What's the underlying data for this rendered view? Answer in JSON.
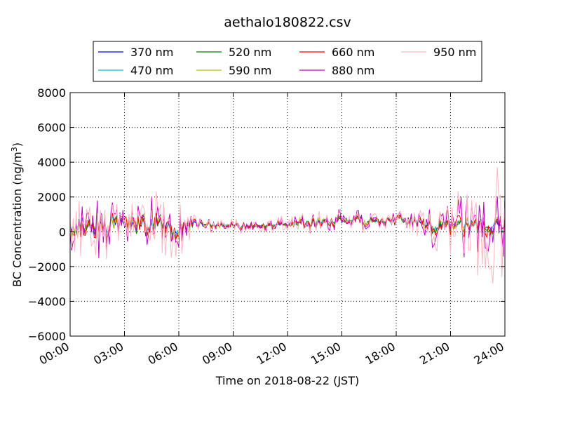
{
  "chart_data": {
    "type": "line",
    "title": "aethalo180822.csv",
    "xlabel": "Time on 2018-08-22 (JST)",
    "ylabel_main": "BC Concentration (ng/m",
    "ylabel_sup": "3",
    "ylabel_tail": ")",
    "xlim": [
      0,
      24
    ],
    "ylim": [
      -6000,
      8000
    ],
    "x_ticks": [
      0,
      3,
      6,
      9,
      12,
      15,
      18,
      21,
      24
    ],
    "x_tick_labels": [
      "00:00",
      "03:00",
      "06:00",
      "09:00",
      "12:00",
      "15:00",
      "18:00",
      "21:00",
      "24:00"
    ],
    "y_ticks": [
      -6000,
      -4000,
      -2000,
      0,
      2000,
      4000,
      6000,
      8000
    ],
    "y_tick_labels": [
      "−6000",
      "−4000",
      "−2000",
      "0",
      "2000",
      "4000",
      "6000",
      "8000"
    ],
    "grid": true,
    "legend": "top-center",
    "series": [
      {
        "name": "370 nm",
        "color": "#0000ff",
        "amplitude_by_hour": [
          600,
          700,
          800,
          500,
          700,
          800,
          650,
          250,
          200,
          200,
          200,
          200,
          200,
          350,
          300,
          300,
          300,
          250,
          250,
          300,
          400,
          400,
          400,
          450
        ],
        "baseline_by_hour": [
          300,
          300,
          300,
          400,
          300,
          300,
          300,
          450,
          400,
          350,
          300,
          350,
          450,
          450,
          600,
          650,
          650,
          500,
          700,
          600,
          400,
          400,
          400,
          400
        ],
        "upper_envelope": [],
        "lower_envelope": []
      },
      {
        "name": "470 nm",
        "color": "#00bfbf",
        "amplitude_by_hour": [
          650,
          750,
          850,
          600,
          750,
          850,
          700,
          250,
          220,
          220,
          220,
          220,
          220,
          380,
          320,
          320,
          320,
          280,
          280,
          320,
          450,
          450,
          450,
          500
        ],
        "baseline_by_hour": [
          300,
          300,
          300,
          400,
          300,
          300,
          300,
          450,
          400,
          350,
          300,
          350,
          450,
          450,
          600,
          650,
          650,
          500,
          700,
          600,
          400,
          400,
          400,
          400
        ],
        "upper_envelope": [],
        "lower_envelope": []
      },
      {
        "name": "520 nm",
        "color": "#008000",
        "amplitude_by_hour": [
          700,
          800,
          900,
          700,
          800,
          900,
          750,
          280,
          240,
          240,
          240,
          240,
          240,
          400,
          350,
          350,
          350,
          300,
          300,
          350,
          500,
          500,
          500,
          550
        ],
        "baseline_by_hour": [
          300,
          300,
          300,
          400,
          300,
          300,
          300,
          450,
          400,
          350,
          300,
          350,
          450,
          450,
          600,
          650,
          650,
          500,
          700,
          600,
          400,
          400,
          400,
          400
        ],
        "upper_envelope": [],
        "lower_envelope": []
      },
      {
        "name": "590 nm",
        "color": "#bfbf00",
        "amplitude_by_hour": [
          750,
          850,
          950,
          750,
          850,
          950,
          800,
          300,
          260,
          260,
          260,
          260,
          260,
          420,
          370,
          370,
          370,
          320,
          320,
          370,
          550,
          550,
          550,
          600
        ],
        "baseline_by_hour": [
          300,
          300,
          300,
          400,
          300,
          300,
          300,
          450,
          400,
          350,
          300,
          350,
          450,
          450,
          600,
          650,
          650,
          500,
          700,
          600,
          400,
          400,
          400,
          400
        ],
        "upper_envelope": [],
        "lower_envelope": []
      },
      {
        "name": "660 nm",
        "color": "#ff0000",
        "amplitude_by_hour": [
          850,
          950,
          1050,
          850,
          950,
          1050,
          900,
          320,
          280,
          280,
          280,
          280,
          300,
          480,
          420,
          420,
          420,
          360,
          360,
          420,
          700,
          700,
          700,
          750
        ],
        "baseline_by_hour": [
          300,
          300,
          300,
          400,
          300,
          300,
          300,
          450,
          400,
          350,
          300,
          350,
          450,
          450,
          600,
          650,
          650,
          500,
          700,
          600,
          400,
          400,
          400,
          400
        ],
        "upper_envelope": [],
        "lower_envelope": []
      },
      {
        "name": "880 nm",
        "color": "#bf00bf",
        "amplitude_by_hour": [
          1600,
          1900,
          2000,
          1200,
          1700,
          1800,
          1600,
          450,
          400,
          380,
          380,
          420,
          500,
          700,
          600,
          650,
          600,
          500,
          500,
          650,
          1800,
          1900,
          2000,
          2600
        ],
        "baseline_by_hour": [
          300,
          300,
          300,
          400,
          300,
          300,
          300,
          450,
          400,
          350,
          300,
          350,
          450,
          450,
          600,
          650,
          650,
          500,
          700,
          600,
          400,
          400,
          400,
          400
        ],
        "upper_envelope": [],
        "lower_envelope": []
      },
      {
        "name": "950 nm",
        "color": "#ffb6c1",
        "amplitude_by_hour": [
          2400,
          2800,
          2600,
          1000,
          1500,
          2600,
          2200,
          500,
          450,
          450,
          450,
          500,
          650,
          900,
          750,
          800,
          750,
          600,
          600,
          800,
          2000,
          2200,
          2600,
          3500
        ],
        "baseline_by_hour": [
          300,
          300,
          300,
          400,
          300,
          300,
          300,
          450,
          400,
          350,
          300,
          350,
          450,
          450,
          600,
          650,
          650,
          500,
          700,
          600,
          400,
          400,
          400,
          400
        ],
        "upper_envelope": [],
        "lower_envelope": []
      }
    ]
  }
}
